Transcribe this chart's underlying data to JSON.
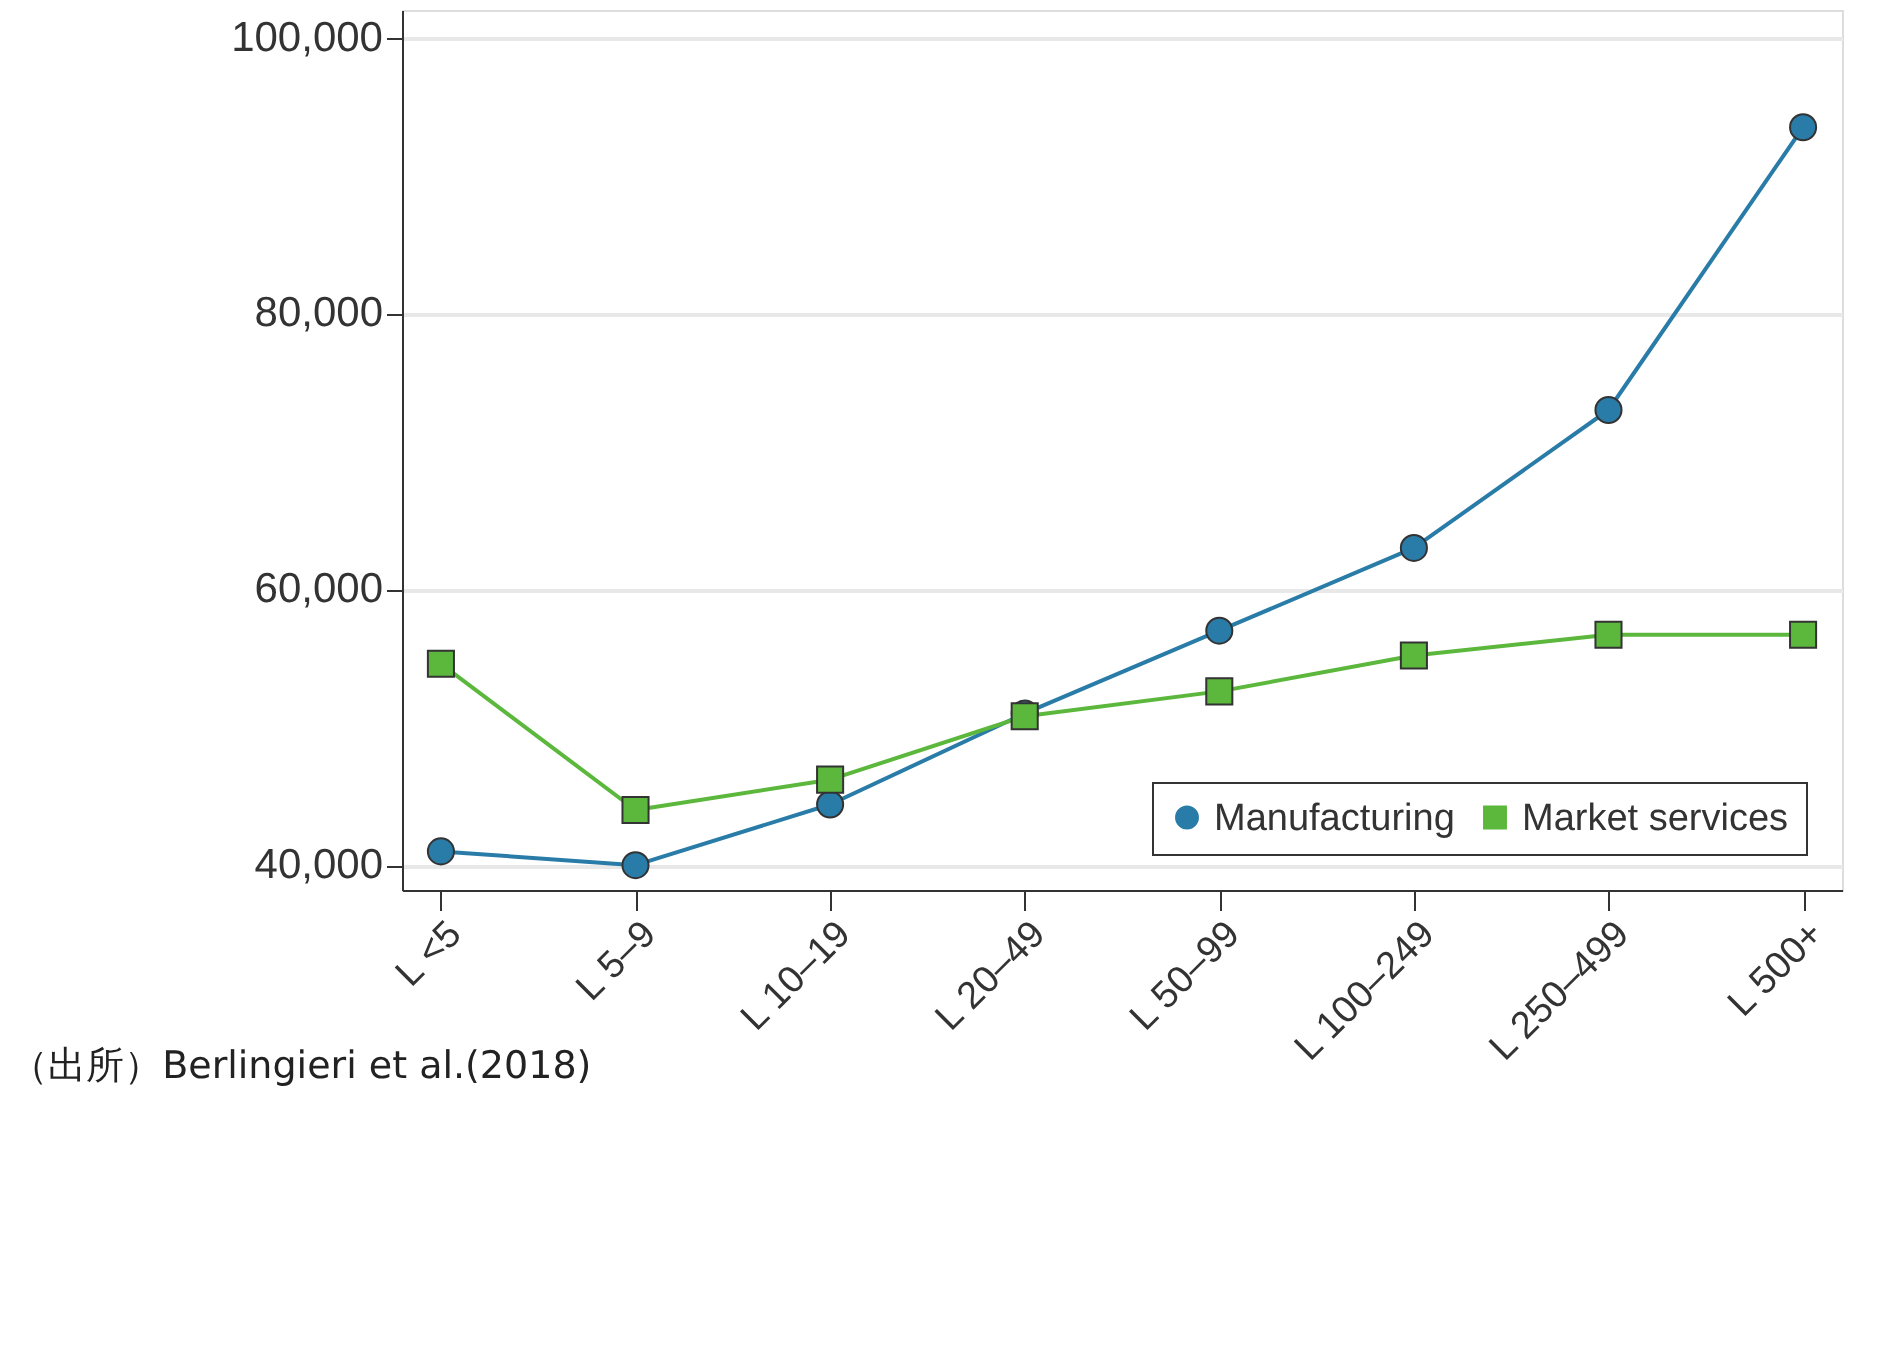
{
  "chart_data": {
    "type": "line",
    "categories": [
      "L <5",
      "L 5–9",
      "L 10–19",
      "L 20–49",
      "L 50–99",
      "L 100–249",
      "L 250–499",
      "L 500+"
    ],
    "series": [
      {
        "name": "Manufacturing",
        "color": "#2a7ca8",
        "marker": "circle",
        "values": [
          41000,
          40000,
          44400,
          51000,
          57000,
          63000,
          73000,
          93500
        ]
      },
      {
        "name": "Market services",
        "color": "#5cb83c",
        "marker": "square",
        "values": [
          54600,
          44000,
          46200,
          50800,
          52600,
          55200,
          56700,
          56700
        ]
      }
    ],
    "ylim": [
      38200,
      102000
    ],
    "yticks": [
      {
        "value": 40000,
        "label": "40,000"
      },
      {
        "value": 60000,
        "label": "60,000"
      },
      {
        "value": 80000,
        "label": "80,000"
      },
      {
        "value": 100000,
        "label": "100,000"
      }
    ],
    "grid": "y",
    "legend": "bottom right",
    "line_style": "solid",
    "annotations": [
      "（出所）Berlingieri et al.(2018)"
    ]
  }
}
